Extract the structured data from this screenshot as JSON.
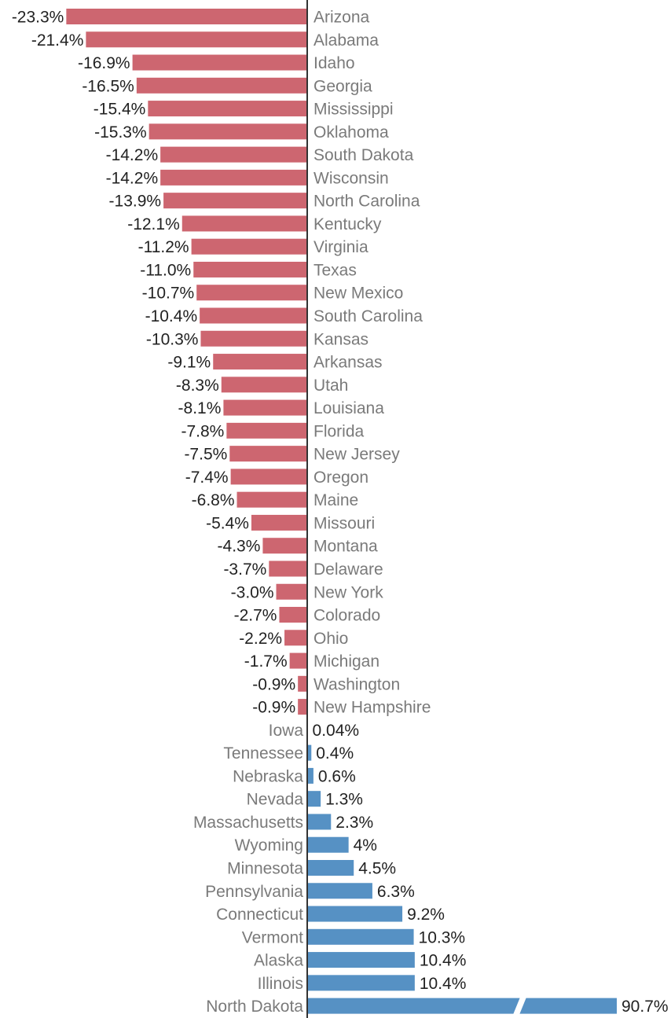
{
  "chart_data": {
    "type": "bar",
    "orientation": "horizontal",
    "unit": "%",
    "colors": {
      "negative": "#cd6670",
      "positive": "#5691c4",
      "axis": "#333333"
    },
    "broken_bar_categories": [
      "North Dakota"
    ],
    "categories": [
      "Arizona",
      "Alabama",
      "Idaho",
      "Georgia",
      "Mississippi",
      "Oklahoma",
      "South Dakota",
      "Wisconsin",
      "North Carolina",
      "Kentucky",
      "Virginia",
      "Texas",
      "New Mexico",
      "South Carolina",
      "Kansas",
      "Arkansas",
      "Utah",
      "Louisiana",
      "Florida",
      "New Jersey",
      "Oregon",
      "Maine",
      "Missouri",
      "Montana",
      "Delaware",
      "New York",
      "Colorado",
      "Ohio",
      "Michigan",
      "Washington",
      "New Hampshire",
      "Iowa",
      "Tennessee",
      "Nebraska",
      "Nevada",
      "Massachusetts",
      "Wyoming",
      "Minnesota",
      "Pennsylvania",
      "Connecticut",
      "Vermont",
      "Alaska",
      "Illinois",
      "North Dakota"
    ],
    "values": [
      -23.3,
      -21.4,
      -16.9,
      -16.5,
      -15.4,
      -15.3,
      -14.2,
      -14.2,
      -13.9,
      -12.1,
      -11.2,
      -11.0,
      -10.7,
      -10.4,
      -10.3,
      -9.1,
      -8.3,
      -8.1,
      -7.8,
      -7.5,
      -7.4,
      -6.8,
      -5.4,
      -4.3,
      -3.7,
      -3.0,
      -2.7,
      -2.2,
      -1.7,
      -0.9,
      -0.9,
      0.04,
      0.4,
      0.6,
      1.3,
      2.3,
      4,
      4.5,
      6.3,
      9.2,
      10.3,
      10.4,
      10.4,
      90.7
    ],
    "value_labels": [
      "-23.3%",
      "-21.4%",
      "-16.9%",
      "-16.5%",
      "-15.4%",
      "-15.3%",
      "-14.2%",
      "-14.2%",
      "-13.9%",
      "-12.1%",
      "-11.2%",
      "-11.0%",
      "-10.7%",
      "-10.4%",
      "-10.3%",
      "-9.1%",
      "-8.3%",
      "-8.1%",
      "-7.8%",
      "-7.5%",
      "-7.4%",
      "-6.8%",
      "-5.4%",
      "-4.3%",
      "-3.7%",
      "-3.0%",
      "-2.7%",
      "-2.2%",
      "-1.7%",
      "-0.9%",
      "-0.9%",
      "0.04%",
      "0.4%",
      "0.6%",
      "1.3%",
      "2.3%",
      "4%",
      "4.5%",
      "6.3%",
      "9.2%",
      "10.3%",
      "10.4%",
      "10.4%",
      "90.7%"
    ],
    "title": "",
    "xlabel": "",
    "ylabel": ""
  }
}
